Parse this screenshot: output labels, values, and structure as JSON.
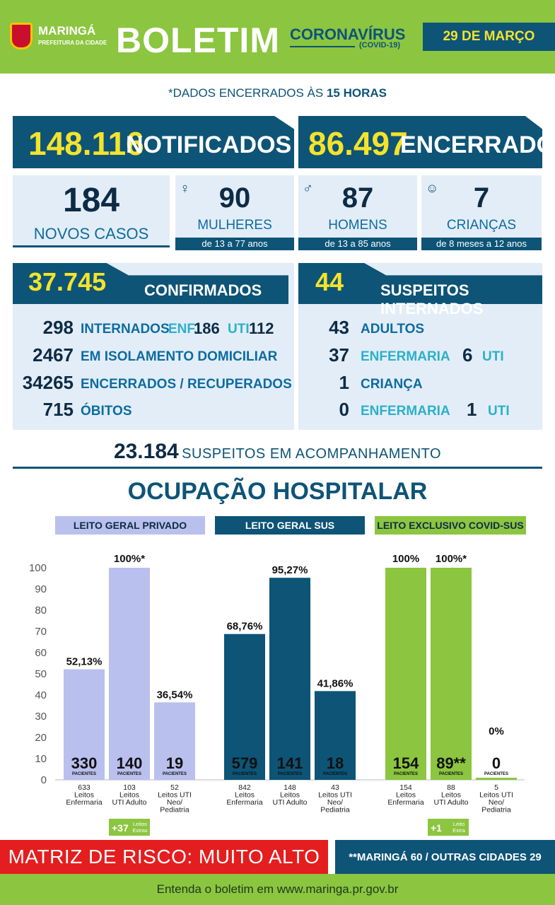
{
  "header": {
    "city": "MARINGÁ",
    "city_sub": "PREFEITURA DA CIDADE",
    "title": "BOLETIM",
    "topic": "CORONAVÍRUS",
    "topic_sub": "(COVID-19)",
    "date": "29 DE MARÇO"
  },
  "cutoff": {
    "prefix": "*DADOS ENCERRADOS ÀS",
    "hour": "15 HORAS"
  },
  "notified": {
    "value": "148.116",
    "label": "NOTIFICADOS"
  },
  "closed": {
    "value": "86.497",
    "label": "ENCERRADOS"
  },
  "new_cases": {
    "value": "184",
    "label": "NOVOS CASOS"
  },
  "women": {
    "value": "90",
    "label": "MULHERES",
    "range": "de 13 a 77 anos"
  },
  "men": {
    "value": "87",
    "label": "HOMENS",
    "range": "de 13 a 85 anos"
  },
  "children": {
    "value": "7",
    "label": "CRIANÇAS",
    "range": "de 8 meses a 12 anos"
  },
  "confirmed": {
    "value": "37.745",
    "label": "CONFIRMADOS",
    "hospitalized": "298",
    "hospitalized_label": "INTERNADOS",
    "enf_label": "ENF.",
    "enf": "186",
    "uti_label": "UTI",
    "uti": "112",
    "isolation": "2467",
    "isolation_label": "EM ISOLAMENTO DOMICILIAR",
    "recovered": "34265",
    "recovered_label": "ENCERRADOS / RECUPERADOS",
    "deaths": "715",
    "deaths_label": "ÓBITOS"
  },
  "suspects": {
    "value": "44",
    "label": "SUSPEITOS INTERNADOS",
    "adults": "43",
    "adults_label": "ADULTOS",
    "adult_enf": "37",
    "enf_label": "ENFERMARIA",
    "adult_uti": "6",
    "uti_label": "UTI",
    "child": "1",
    "child_label": "CRIANÇA",
    "child_enf": "0",
    "child_uti": "1"
  },
  "monitoring": {
    "value": "23.184",
    "label": "SUSPEITOS EM ACOMPANHAMENTO"
  },
  "occupancy_title": "OCUPAÇÃO HOSPITALAR",
  "colors": {
    "green": "#8cc540",
    "navy": "#0d5477",
    "lavender": "#b9c0ee",
    "red": "#e41d1f"
  },
  "chart_data": [
    {
      "type": "bar",
      "title": "LEITO GERAL PRIVADO",
      "ylim": [
        0,
        100
      ],
      "yticks": [
        0,
        10,
        20,
        30,
        40,
        50,
        60,
        70,
        80,
        90,
        100
      ],
      "categories": [
        [
          "633",
          "Leitos",
          "Enfermaria"
        ],
        [
          "103",
          "Leitos",
          "UTI Adulto"
        ],
        [
          "52",
          "Leitos UTI",
          "Neo/",
          "Pediatria"
        ]
      ],
      "values": [
        52.13,
        100,
        36.54
      ],
      "labels": [
        "52,13%",
        "100%*",
        "36,54%"
      ],
      "patients": [
        "330",
        "140",
        "19"
      ],
      "patients_label": "PACIENTES",
      "extra": {
        "value": "+37",
        "label": "Leitos Extras"
      }
    },
    {
      "type": "bar",
      "title": "LEITO GERAL SUS",
      "ylim": [
        0,
        100
      ],
      "categories": [
        [
          "842",
          "Leitos",
          "Enfermaria"
        ],
        [
          "148",
          "Leitos",
          "UTI Adulto"
        ],
        [
          "43",
          "Leitos UTI",
          "Neo/",
          "Pediatria"
        ]
      ],
      "values": [
        68.76,
        95.27,
        41.86
      ],
      "labels": [
        "68,76%",
        "95,27%",
        "41,86%"
      ],
      "patients": [
        "579",
        "141",
        "18"
      ],
      "patients_label": "PACIENTES"
    },
    {
      "type": "bar",
      "title": "LEITO EXCLUSIVO COVID-SUS",
      "ylim": [
        0,
        100
      ],
      "categories": [
        [
          "154",
          "Leitos",
          "Enfermaria"
        ],
        [
          "88",
          "Leitos",
          "UTI Adulto"
        ],
        [
          "5",
          "Leitos UTI",
          "Neo/",
          "Pediatria"
        ]
      ],
      "values": [
        100,
        100,
        0
      ],
      "labels": [
        "100%",
        "100%*",
        "0%"
      ],
      "patients": [
        "154",
        "89**",
        "0"
      ],
      "patients_label": "PACIENTES",
      "extra": {
        "value": "+1",
        "label": "Leito Extra"
      }
    }
  ],
  "risk": {
    "label": "MATRIZ DE RISCO: MUITO ALTO"
  },
  "cities_note": "**MARINGÁ 60 / OUTRAS CIDADES 29",
  "footer": "Entenda o boletim em www.maringa.pr.gov.br"
}
